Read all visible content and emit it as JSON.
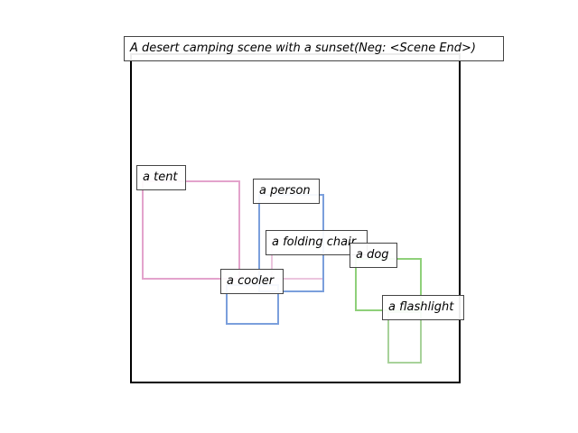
{
  "title": "A desert camping scene with a sunset(Neg: <Scene End>)",
  "colors": {
    "pink": "#e3a3cc",
    "blue": "#7b9fdc",
    "green": "#8fd07a",
    "lightpink": "#ecc5de",
    "lightgreen": "#a8d29a"
  },
  "objects": [
    {
      "name": "tent",
      "label": "a tent"
    },
    {
      "name": "person",
      "label": "a person"
    },
    {
      "name": "folding-chair",
      "label": "a folding chair"
    },
    {
      "name": "cooler",
      "label": "a cooler"
    },
    {
      "name": "dog",
      "label": "a dog"
    },
    {
      "name": "flashlight",
      "label": "a flashlight"
    }
  ]
}
